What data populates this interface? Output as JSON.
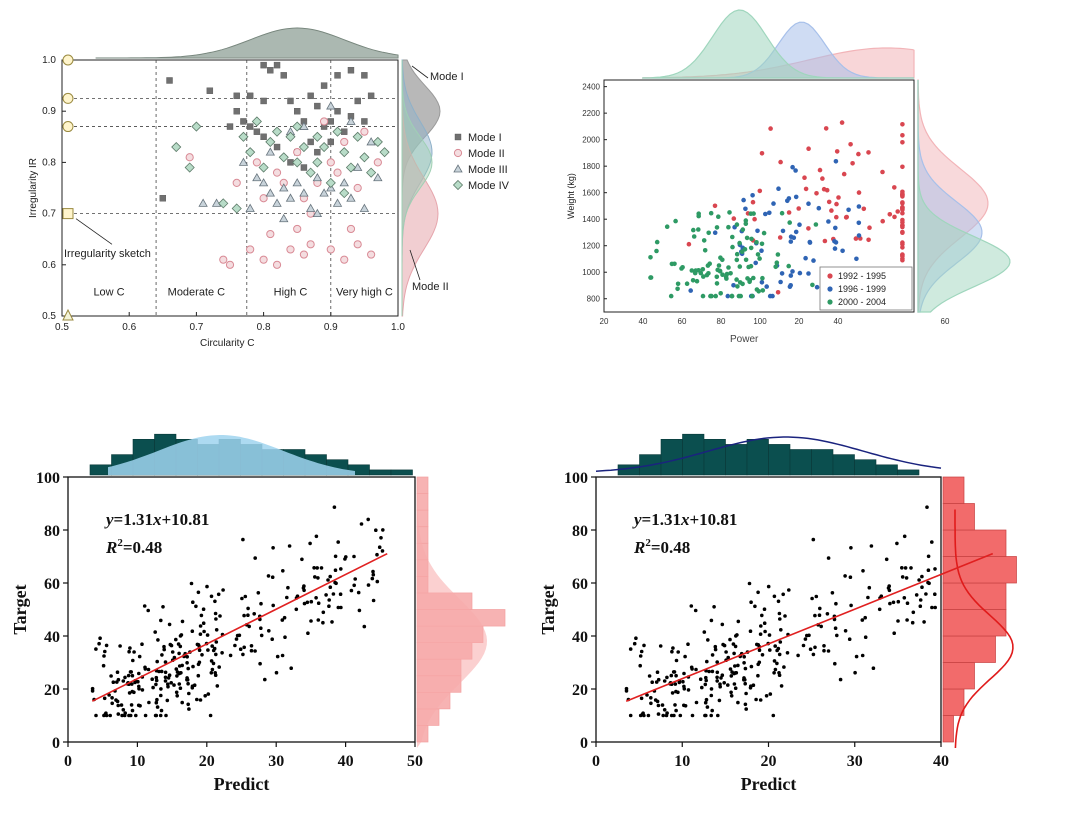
{
  "chart_data": [
    {
      "id": "p1",
      "type": "scatter",
      "xlabel": "Circularity C",
      "ylabel": "Irregularity IR",
      "xlim": [
        0.5,
        1.0
      ],
      "ylim": [
        0.5,
        1.0
      ],
      "xticks": [
        "0.5",
        "0.6",
        "0.7",
        "0.8",
        "0.9",
        "1.0"
      ],
      "yticks": [
        "0.5",
        "0.6",
        "0.7",
        "0.8",
        "0.9",
        "1.0"
      ],
      "vlines": [
        0.64,
        0.775,
        0.9
      ],
      "hlines": [
        0.7,
        0.87,
        0.925
      ],
      "regions": [
        "Low C",
        "Moderate C",
        "High C",
        "Very high C"
      ],
      "annotations": [
        "Irregularity sketch",
        "Mode I",
        "Mode II"
      ],
      "legend_position": "right",
      "series": [
        {
          "name": "Mode I",
          "marker": "square",
          "color": "#707070",
          "points": [
            [
              0.66,
              0.96
            ],
            [
              0.72,
              0.94
            ],
            [
              0.76,
              0.9
            ],
            [
              0.78,
              0.93
            ],
            [
              0.8,
              0.99
            ],
            [
              0.81,
              0.98
            ],
            [
              0.82,
              0.99
            ],
            [
              0.83,
              0.97
            ],
            [
              0.84,
              0.92
            ],
            [
              0.85,
              0.9
            ],
            [
              0.86,
              0.88
            ],
            [
              0.87,
              0.93
            ],
            [
              0.88,
              0.91
            ],
            [
              0.89,
              0.87
            ],
            [
              0.9,
              0.88
            ],
            [
              0.91,
              0.9
            ],
            [
              0.92,
              0.86
            ],
            [
              0.93,
              0.89
            ],
            [
              0.94,
              0.92
            ],
            [
              0.95,
              0.88
            ],
            [
              0.96,
              0.93
            ],
            [
              0.77,
              0.88
            ],
            [
              0.79,
              0.86
            ],
            [
              0.8,
              0.85
            ],
            [
              0.82,
              0.83
            ],
            [
              0.84,
              0.8
            ],
            [
              0.86,
              0.79
            ],
            [
              0.88,
              0.82
            ],
            [
              0.9,
              0.84
            ],
            [
              0.65,
              0.73
            ],
            [
              0.75,
              0.87
            ],
            [
              0.78,
              0.87
            ],
            [
              0.85,
              0.82
            ],
            [
              0.87,
              0.84
            ],
            [
              0.91,
              0.97
            ],
            [
              0.93,
              0.98
            ],
            [
              0.95,
              0.97
            ],
            [
              0.8,
              0.92
            ],
            [
              0.89,
              0.95
            ],
            [
              0.76,
              0.93
            ]
          ]
        },
        {
          "name": "Mode II",
          "marker": "circle",
          "color": "#d98a95",
          "points": [
            [
              0.69,
              0.81
            ],
            [
              0.74,
              0.61
            ],
            [
              0.75,
              0.6
            ],
            [
              0.78,
              0.63
            ],
            [
              0.8,
              0.61
            ],
            [
              0.81,
              0.66
            ],
            [
              0.82,
              0.6
            ],
            [
              0.84,
              0.63
            ],
            [
              0.85,
              0.67
            ],
            [
              0.86,
              0.62
            ],
            [
              0.87,
              0.64
            ],
            [
              0.9,
              0.63
            ],
            [
              0.92,
              0.61
            ],
            [
              0.93,
              0.67
            ],
            [
              0.94,
              0.64
            ],
            [
              0.96,
              0.62
            ],
            [
              0.82,
              0.78
            ],
            [
              0.85,
              0.82
            ],
            [
              0.88,
              0.76
            ],
            [
              0.9,
              0.8
            ],
            [
              0.92,
              0.84
            ],
            [
              0.95,
              0.86
            ],
            [
              0.79,
              0.8
            ],
            [
              0.83,
              0.76
            ],
            [
              0.86,
              0.73
            ],
            [
              0.89,
              0.88
            ],
            [
              0.91,
              0.78
            ],
            [
              0.94,
              0.75
            ],
            [
              0.97,
              0.8
            ],
            [
              0.8,
              0.73
            ],
            [
              0.76,
              0.76
            ],
            [
              0.87,
              0.7
            ]
          ]
        },
        {
          "name": "Mode III",
          "marker": "triangle",
          "color": "#9aaab5",
          "points": [
            [
              0.71,
              0.72
            ],
            [
              0.73,
              0.72
            ],
            [
              0.77,
              0.8
            ],
            [
              0.79,
              0.77
            ],
            [
              0.8,
              0.76
            ],
            [
              0.81,
              0.74
            ],
            [
              0.82,
              0.72
            ],
            [
              0.83,
              0.75
            ],
            [
              0.84,
              0.73
            ],
            [
              0.85,
              0.76
            ],
            [
              0.86,
              0.74
            ],
            [
              0.87,
              0.71
            ],
            [
              0.88,
              0.77
            ],
            [
              0.89,
              0.74
            ],
            [
              0.9,
              0.75
            ],
            [
              0.91,
              0.72
            ],
            [
              0.92,
              0.76
            ],
            [
              0.93,
              0.73
            ],
            [
              0.95,
              0.71
            ],
            [
              0.97,
              0.77
            ],
            [
              0.84,
              0.86
            ],
            [
              0.86,
              0.87
            ],
            [
              0.9,
              0.91
            ],
            [
              0.93,
              0.88
            ],
            [
              0.96,
              0.84
            ],
            [
              0.78,
              0.71
            ],
            [
              0.83,
              0.69
            ],
            [
              0.88,
              0.7
            ],
            [
              0.94,
              0.79
            ],
            [
              0.81,
              0.82
            ]
          ]
        },
        {
          "name": "Mode IV",
          "marker": "diamond",
          "color": "#b8dcc8",
          "points": [
            [
              0.67,
              0.83
            ],
            [
              0.69,
              0.79
            ],
            [
              0.7,
              0.87
            ],
            [
              0.74,
              0.72
            ],
            [
              0.76,
              0.71
            ],
            [
              0.78,
              0.82
            ],
            [
              0.8,
              0.79
            ],
            [
              0.81,
              0.84
            ],
            [
              0.82,
              0.86
            ],
            [
              0.83,
              0.81
            ],
            [
              0.84,
              0.85
            ],
            [
              0.85,
              0.8
            ],
            [
              0.86,
              0.83
            ],
            [
              0.87,
              0.78
            ],
            [
              0.88,
              0.8
            ],
            [
              0.89,
              0.83
            ],
            [
              0.9,
              0.76
            ],
            [
              0.91,
              0.86
            ],
            [
              0.92,
              0.82
            ],
            [
              0.93,
              0.79
            ],
            [
              0.94,
              0.85
            ],
            [
              0.95,
              0.81
            ],
            [
              0.96,
              0.78
            ],
            [
              0.97,
              0.84
            ],
            [
              0.98,
              0.82
            ],
            [
              0.77,
              0.85
            ],
            [
              0.79,
              0.88
            ],
            [
              0.85,
              0.87
            ],
            [
              0.88,
              0.85
            ],
            [
              0.92,
              0.74
            ]
          ]
        }
      ],
      "marginal_x": {
        "type": "density",
        "peak": 0.85
      },
      "marginal_y": {
        "type": "density",
        "series": [
          "Mode I",
          "Mode II"
        ]
      }
    },
    {
      "id": "p2",
      "type": "scatter",
      "xlabel": "Power",
      "ylabel": "Weight (kg)",
      "xlim": [
        20,
        100
      ],
      "ylim": [
        700,
        2450
      ],
      "xticks": [
        "20",
        "40",
        "60",
        "80",
        "100",
        "20",
        "40",
        "60"
      ],
      "yticks": [
        "800",
        "1000",
        "1200",
        "1400",
        "1600",
        "1800",
        "2000",
        "2200",
        "2400"
      ],
      "legend_position": "bottom-right",
      "series": [
        {
          "name": "1992 - 1995",
          "color": "#d94650",
          "center": [
            90,
            1500
          ],
          "spread": [
            22,
            300
          ],
          "count": 90
        },
        {
          "name": "1996 - 1999",
          "color": "#2f64b4",
          "center": [
            70,
            1250
          ],
          "spread": [
            10,
            260
          ],
          "count": 70
        },
        {
          "name": "2000 - 2004",
          "color": "#2e9a64",
          "center": [
            52,
            1080
          ],
          "spread": [
            10,
            200
          ],
          "count": 110
        }
      ],
      "marginal_x": {
        "type": "density",
        "peaks": [
          55,
          71,
          93
        ]
      },
      "marginal_y": {
        "type": "density",
        "peaks": [
          1520,
          1300,
          1080
        ]
      }
    },
    {
      "id": "p3",
      "type": "scatter",
      "xlabel": "Predict",
      "ylabel": "Target",
      "xlim": [
        0,
        50
      ],
      "ylim": [
        0,
        100
      ],
      "xticks": [
        "0",
        "10",
        "20",
        "30",
        "40",
        "50"
      ],
      "yticks": [
        "0",
        "20",
        "40",
        "60",
        "80",
        "100"
      ],
      "equation_y": "y",
      "equation_rest": "=1.31",
      "equation_x": "x",
      "equation_tail": "+10.81",
      "r2_label": "R",
      "r2_sup": "2",
      "r2_value": "=0.48",
      "fit": {
        "slope": 1.31,
        "intercept": 10.81,
        "x_range": [
          3.5,
          46
        ]
      },
      "points_count": 320,
      "hist_top": [
        2,
        4,
        7,
        8,
        7,
        6,
        7,
        6,
        5,
        5,
        4,
        3,
        2,
        1,
        1
      ],
      "hist_right": [
        1,
        2,
        3,
        4,
        4,
        5,
        6,
        8,
        5,
        1,
        1,
        1,
        1,
        1,
        1,
        1
      ],
      "marginal_style": "light"
    },
    {
      "id": "p4",
      "type": "scatter",
      "xlabel": "Predict",
      "ylabel": "Target",
      "xlim": [
        0,
        40
      ],
      "ylim": [
        0,
        100
      ],
      "xticks": [
        "0",
        "10",
        "20",
        "30",
        "40"
      ],
      "yticks": [
        "0",
        "20",
        "40",
        "60",
        "80",
        "100"
      ],
      "equation_y": "y",
      "equation_rest": "=1.31",
      "equation_x": "x",
      "equation_tail": "+10.81",
      "r2_label": "R",
      "r2_sup": "2",
      "r2_value": "=0.48",
      "fit": {
        "slope": 1.31,
        "intercept": 10.81,
        "x_range": [
          3.5,
          46
        ]
      },
      "points_count": 320,
      "hist_top": [
        2,
        4,
        7,
        8,
        7,
        6,
        7,
        6,
        5,
        5,
        4,
        3,
        2,
        1
      ],
      "hist_right": [
        1,
        2,
        3,
        5,
        6,
        6,
        7,
        6,
        3,
        2
      ],
      "marginal_style": "dark"
    }
  ]
}
